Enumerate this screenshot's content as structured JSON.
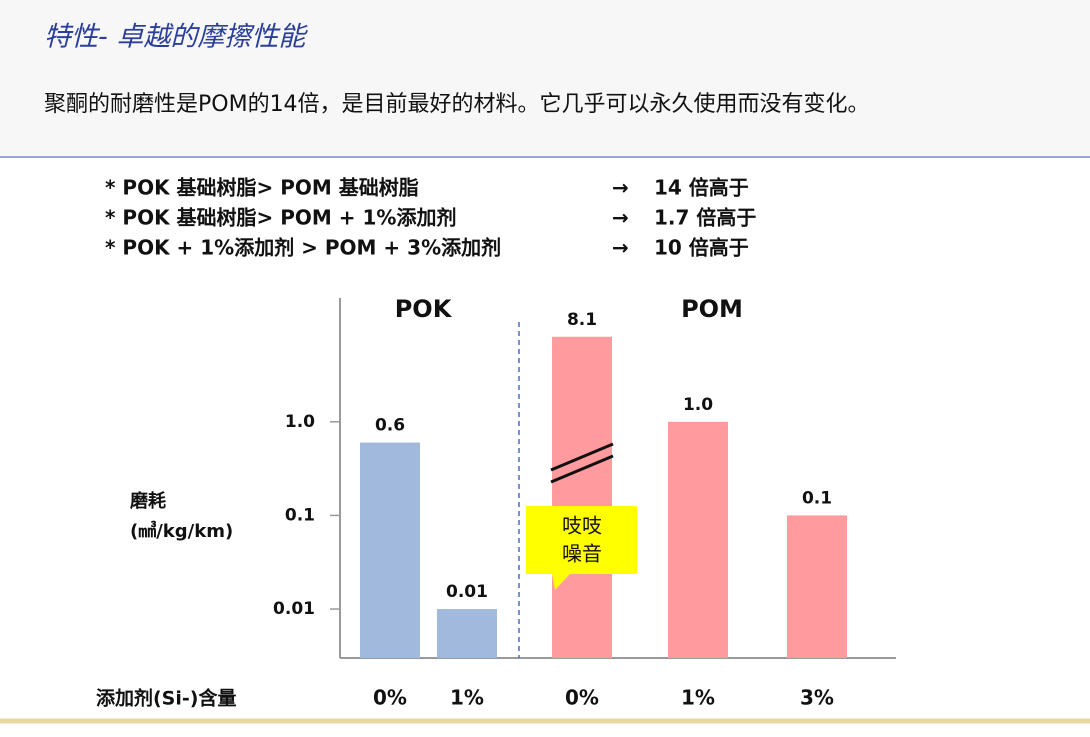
{
  "header": {
    "title": "特性- 卓越的摩擦性能",
    "subtitle": "聚酮的耐磨性是POM的14倍，是目前最好的材料。它几乎可以永久使用而没有变化。"
  },
  "bullets": [
    {
      "text": "* POK 基础树脂> POM 基础树脂",
      "arrow": "→",
      "result": "14 倍高于"
    },
    {
      "text": "* POK 基础树脂> POM + 1%添加剂",
      "arrow": "→",
      "result": "1.7 倍高于"
    },
    {
      "text": "* POK + 1%添加剂 > POM + 3%添加剂",
      "arrow": "→",
      "result": "10 倍高于"
    }
  ],
  "chart_data": {
    "type": "bar",
    "log_scale": true,
    "ylabel": [
      "磨耗",
      "(㎣/kg/km)"
    ],
    "xlabel": "添加剂(Si-)含量",
    "ylim": [
      0.003,
      20
    ],
    "yticks": [
      {
        "value": 1,
        "label": "1.0"
      },
      0.1,
      0.01
    ],
    "groups": [
      {
        "name": "POK",
        "color": "#a0b9dc",
        "categories": [
          "0%",
          "1%"
        ],
        "values": [
          0.6,
          0.01
        ],
        "value_labels": [
          "0.6",
          "0.01"
        ]
      },
      {
        "name": "POM",
        "color": "#ff9b9e",
        "categories": [
          "0%",
          "1%",
          "3%"
        ],
        "values": [
          8.1,
          1,
          0.1
        ],
        "value_labels": [
          "8.1",
          "1.0",
          "0.1"
        ]
      }
    ],
    "annotation": [
      "吱吱",
      "噪音"
    ]
  }
}
